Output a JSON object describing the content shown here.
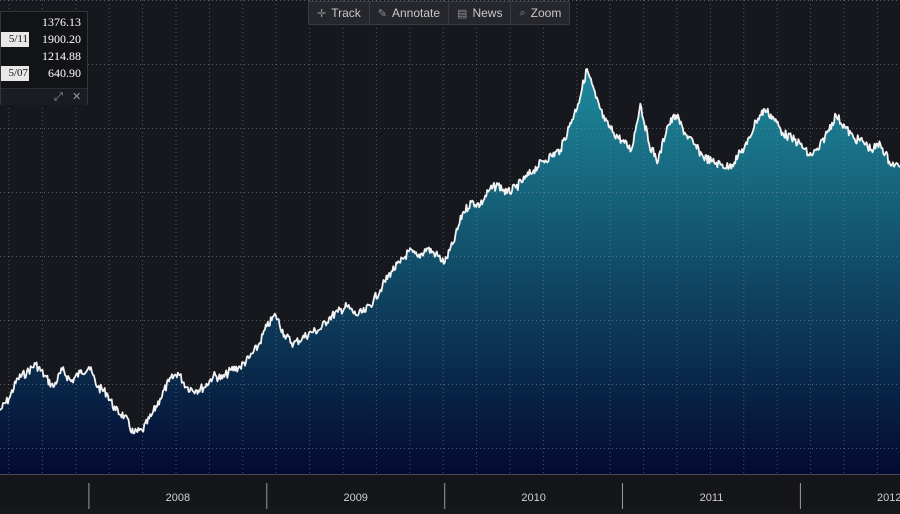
{
  "toolbar": {
    "items": [
      {
        "label": "Track",
        "icon": "crosshair-icon",
        "glyph": "✛"
      },
      {
        "label": "Annotate",
        "icon": "pencil-icon",
        "glyph": "✎"
      },
      {
        "label": "News",
        "icon": "news-icon",
        "glyph": "▤"
      },
      {
        "label": "Zoom",
        "icon": "magnifier-icon",
        "glyph": "⌕"
      }
    ]
  },
  "stats_panel": {
    "rows": [
      {
        "date": "",
        "value": "1376.13"
      },
      {
        "date": "5/11",
        "value": "1900.20"
      },
      {
        "date": "",
        "value": "1214.88"
      },
      {
        "date": "5/07",
        "value": "640.90"
      }
    ],
    "footer_icons": [
      "expand-icon",
      "collapse-icon"
    ]
  },
  "colors": {
    "background": "#17181d",
    "line": "#f2f2f2",
    "area_top": "#1e8a9c",
    "area_bottom": "#030a30",
    "grid": "#8a8f98"
  },
  "chart_data": {
    "type": "area",
    "x_unit": "year (decimal)",
    "xlim": [
      2007.5,
      2012.56
    ],
    "ylim": [
      500,
      2000
    ],
    "grid": true,
    "year_labels": [
      "2008",
      "2009",
      "2010",
      "2011",
      "2012"
    ],
    "series": [
      {
        "x": [
          2007.5,
          2007.55,
          2007.6,
          2007.65,
          2007.7,
          2007.75,
          2007.8,
          2007.85,
          2007.9,
          2007.95,
          2008.0,
          2008.05,
          2008.1,
          2008.15,
          2008.2,
          2008.25,
          2008.3,
          2008.35,
          2008.4,
          2008.45,
          2008.5,
          2008.55,
          2008.6,
          2008.65,
          2008.7,
          2008.75,
          2008.8,
          2008.85,
          2008.9,
          2008.95,
          2009.0,
          2009.05,
          2009.1,
          2009.15,
          2009.2,
          2009.25,
          2009.3,
          2009.35,
          2009.4,
          2009.45,
          2009.5,
          2009.55,
          2009.6,
          2009.65,
          2009.7,
          2009.75,
          2009.8,
          2009.85,
          2009.9,
          2009.95,
          2010.0,
          2010.05,
          2010.1,
          2010.15,
          2010.2,
          2010.25,
          2010.3,
          2010.35,
          2010.4,
          2010.45,
          2010.5,
          2010.55,
          2010.6,
          2010.65,
          2010.7,
          2010.75,
          2010.8,
          2010.85,
          2010.9,
          2010.95,
          2011.0,
          2011.05,
          2011.1,
          2011.15,
          2011.2,
          2011.25,
          2011.3,
          2011.35,
          2011.4,
          2011.45,
          2011.5,
          2011.55,
          2011.6,
          2011.65,
          2011.7,
          2011.75,
          2011.8,
          2011.85,
          2011.9,
          2011.95,
          2012.0,
          2012.05,
          2012.1,
          2012.15,
          2012.2,
          2012.25,
          2012.3,
          2012.35,
          2012.4,
          2012.45,
          2012.5,
          2012.56
        ],
        "y": [
          720,
          760,
          830,
          850,
          880,
          840,
          800,
          860,
          820,
          850,
          870,
          800,
          780,
          720,
          700,
          640,
          650,
          700,
          760,
          820,
          850,
          800,
          790,
          800,
          840,
          830,
          860,
          870,
          900,
          940,
          1010,
          1050,
          980,
          950,
          970,
          990,
          1000,
          1040,
          1060,
          1080,
          1050,
          1060,
          1100,
          1150,
          1200,
          1230,
          1270,
          1250,
          1280,
          1260,
          1230,
          1300,
          1400,
          1440,
          1430,
          1480,
          1500,
          1470,
          1490,
          1520,
          1550,
          1580,
          1600,
          1620,
          1700,
          1780,
          1900,
          1800,
          1720,
          1680,
          1650,
          1620,
          1780,
          1640,
          1580,
          1700,
          1740,
          1680,
          1640,
          1600,
          1580,
          1570,
          1560,
          1600,
          1640,
          1720,
          1760,
          1730,
          1680,
          1660,
          1640,
          1600,
          1620,
          1680,
          1740,
          1700,
          1660,
          1650,
          1620,
          1640,
          1580,
          1560
        ]
      }
    ]
  }
}
